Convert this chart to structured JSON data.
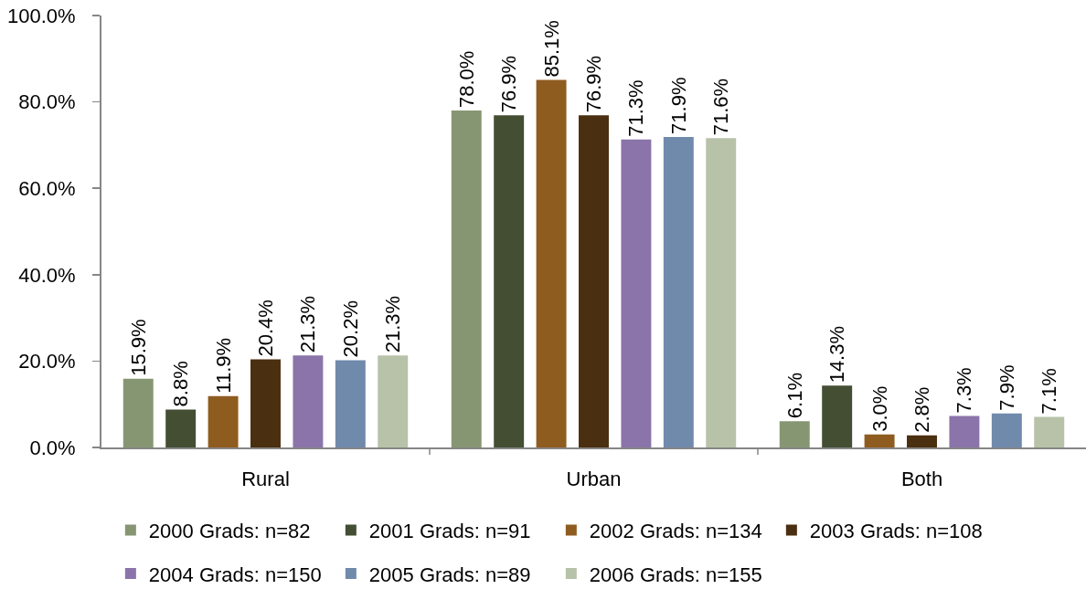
{
  "chart_data": {
    "type": "bar",
    "categories": [
      "Rural",
      "Urban",
      "Both"
    ],
    "series": [
      {
        "name": "2000 Grads: n=82",
        "color": "#879672",
        "values": [
          15.9,
          78.0,
          6.1
        ],
        "value_labels": [
          "15.9%",
          "78.0%",
          "6.1%"
        ]
      },
      {
        "name": "2001 Grads: n=91",
        "color": "#434e33",
        "values": [
          8.8,
          76.9,
          14.3
        ],
        "value_labels": [
          "8.8%",
          "76.9%",
          "14.3%"
        ]
      },
      {
        "name": "2002 Grads: n=134",
        "color": "#8f5c20",
        "values": [
          11.9,
          85.1,
          3.0
        ],
        "value_labels": [
          "11.9%",
          "85.1%",
          "3.0%"
        ]
      },
      {
        "name": "2003 Grads: n=108",
        "color": "#4a2f10",
        "values": [
          20.4,
          76.9,
          2.8
        ],
        "value_labels": [
          "20.4%",
          "76.9%",
          "2.8%"
        ]
      },
      {
        "name": "2004 Grads: n=150",
        "color": "#8a74a9",
        "values": [
          21.3,
          71.3,
          7.3
        ],
        "value_labels": [
          "21.3%",
          "71.3%",
          "7.3%"
        ]
      },
      {
        "name": "2005 Grads: n=89",
        "color": "#708aac",
        "values": [
          20.2,
          71.9,
          7.9
        ],
        "value_labels": [
          "20.2%",
          "71.9%",
          "7.9%"
        ]
      },
      {
        "name": "2006 Grads: n=155",
        "color": "#b8c2a8",
        "values": [
          21.3,
          71.6,
          7.1
        ],
        "value_labels": [
          "21.3%",
          "71.6%",
          "7.1%"
        ]
      }
    ],
    "ylim": [
      0,
      100
    ],
    "yticks": [
      {
        "value": 0,
        "label": "0.0%"
      },
      {
        "value": 20,
        "label": "20.0%"
      },
      {
        "value": 40,
        "label": "40.0%"
      },
      {
        "value": 60,
        "label": "60.0%"
      },
      {
        "value": 80,
        "label": "80.0%"
      },
      {
        "value": 100,
        "label": "100.0%"
      }
    ],
    "grid": false,
    "legend": "bottom"
  }
}
